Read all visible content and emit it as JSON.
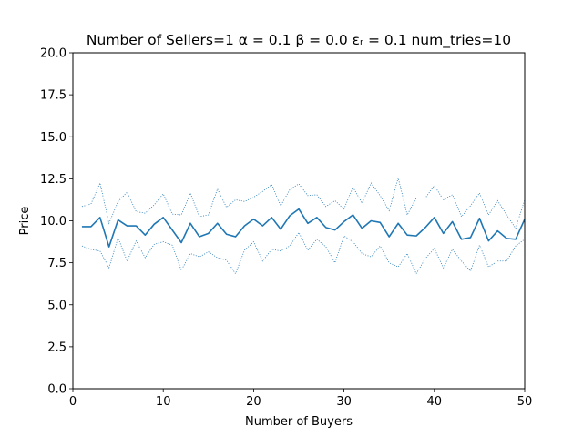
{
  "chart_data": {
    "type": "line",
    "title": "Number of Sellers=1  α = 0.1  β = 0.0  εᵣ = 0.1 num_tries=10",
    "xlabel": "Number of Buyers",
    "ylabel": "Price",
    "xlim": [
      0,
      50
    ],
    "ylim": [
      0,
      20
    ],
    "xticks": [
      0,
      10,
      20,
      30,
      40,
      50
    ],
    "yticks": [
      0.0,
      2.5,
      5.0,
      7.5,
      10.0,
      12.5,
      15.0,
      17.5,
      20.0
    ],
    "ytick_labels": [
      "0.0",
      "2.5",
      "5.0",
      "7.5",
      "10.0",
      "12.5",
      "15.0",
      "17.5",
      "20.0"
    ],
    "xtick_labels": [
      "0",
      "10",
      "20",
      "30",
      "40",
      "50"
    ],
    "grid": false,
    "x": [
      1,
      2,
      3,
      4,
      5,
      6,
      7,
      8,
      9,
      10,
      11,
      12,
      13,
      14,
      15,
      16,
      17,
      18,
      19,
      20,
      21,
      22,
      23,
      24,
      25,
      26,
      27,
      28,
      29,
      30,
      31,
      32,
      33,
      34,
      35,
      36,
      37,
      38,
      39,
      40,
      41,
      42,
      43,
      44,
      45,
      46,
      47,
      48,
      49,
      50
    ],
    "series": [
      {
        "style": "solid",
        "color": "#1f77b4",
        "values": [
          9.65,
          9.65,
          10.2,
          8.45,
          10.05,
          9.7,
          9.7,
          9.15,
          9.8,
          10.2,
          9.45,
          8.7,
          9.85,
          9.05,
          9.25,
          9.85,
          9.2,
          9.05,
          9.7,
          10.1,
          9.7,
          10.2,
          9.5,
          10.3,
          10.7,
          9.85,
          10.2,
          9.6,
          9.45,
          9.95,
          10.35,
          9.55,
          10.0,
          9.9,
          9.05,
          9.85,
          9.15,
          9.1,
          9.6,
          10.2,
          9.25,
          9.95,
          8.9,
          9.0,
          10.15,
          8.8,
          9.4,
          8.95,
          8.9,
          10.1
        ]
      },
      {
        "style": "dotted",
        "color": "#1f77b4",
        "values": [
          10.85,
          11.0,
          12.25,
          9.85,
          11.15,
          11.7,
          10.55,
          10.45,
          10.95,
          11.6,
          10.4,
          10.35,
          11.65,
          10.25,
          10.35,
          11.9,
          10.8,
          11.25,
          11.15,
          11.4,
          11.75,
          12.15,
          10.9,
          11.85,
          12.2,
          11.5,
          11.55,
          10.85,
          11.2,
          10.7,
          12.0,
          11.05,
          12.25,
          11.5,
          10.6,
          12.55,
          10.35,
          11.35,
          11.35,
          12.1,
          11.25,
          11.55,
          10.25,
          10.9,
          11.65,
          10.35,
          11.2,
          10.35,
          9.55,
          11.25
        ]
      },
      {
        "style": "dotted",
        "color": "#1f77b4",
        "values": [
          8.5,
          8.3,
          8.2,
          7.2,
          9.0,
          7.6,
          8.8,
          7.8,
          8.6,
          8.75,
          8.55,
          7.05,
          8.05,
          7.85,
          8.15,
          7.8,
          7.65,
          6.85,
          8.25,
          8.75,
          7.6,
          8.3,
          8.2,
          8.5,
          9.3,
          8.25,
          8.9,
          8.45,
          7.5,
          9.1,
          8.75,
          8.05,
          7.85,
          8.5,
          7.5,
          7.25,
          8.05,
          6.85,
          7.75,
          8.35,
          7.2,
          8.3,
          7.6,
          7.0,
          8.55,
          7.25,
          7.6,
          7.6,
          8.5,
          8.9
        ]
      }
    ]
  }
}
